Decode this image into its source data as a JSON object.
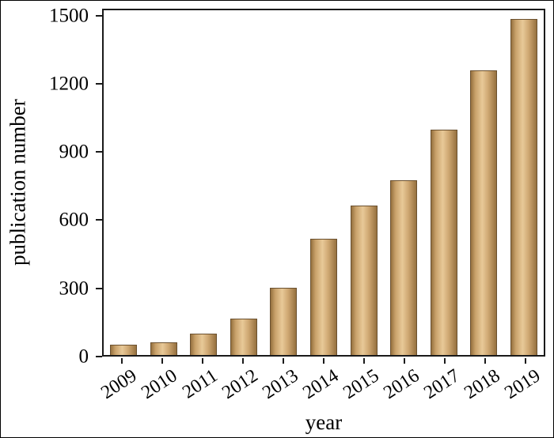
{
  "chart_data": {
    "type": "bar",
    "title": "",
    "xlabel": "year",
    "ylabel": "publication number",
    "categories": [
      "2009",
      "2010",
      "2011",
      "2012",
      "2013",
      "2014",
      "2015",
      "2016",
      "2017",
      "2018",
      "2019"
    ],
    "values": [
      45,
      55,
      95,
      160,
      300,
      515,
      665,
      775,
      1000,
      1265,
      1490
    ],
    "yticks": [
      0,
      300,
      600,
      900,
      1200,
      1500
    ],
    "ylim": [
      0,
      1530
    ],
    "grid": false,
    "legend": "none",
    "bar_color_center": "#e8c998",
    "bar_color_edge": "#96713f",
    "bar_border_color": "#6b5130",
    "axis_color": "#1a1a1a",
    "background": "#ffffff"
  }
}
